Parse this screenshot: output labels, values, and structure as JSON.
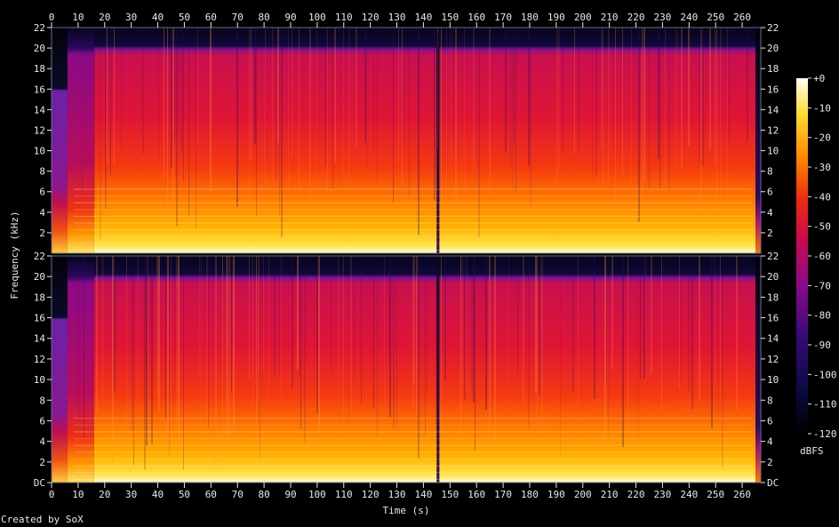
{
  "chart_data": {
    "type": "heatmap",
    "xlabel": "Time (s)",
    "ylabel": "Frequency (kHz)",
    "x_ticks": [
      0,
      10,
      20,
      30,
      40,
      50,
      60,
      70,
      80,
      90,
      100,
      110,
      120,
      130,
      140,
      150,
      160,
      170,
      180,
      190,
      200,
      210,
      220,
      230,
      240,
      250,
      260
    ],
    "xlim": [
      0,
      267
    ],
    "y_ticks_top": [
      "22",
      "20",
      "18",
      "16",
      "14",
      "12",
      "10",
      "8",
      "6",
      "4",
      "2"
    ],
    "y_ticks_bottom": [
      "22",
      "20",
      "18",
      "16",
      "14",
      "12",
      "10",
      "8",
      "6",
      "4",
      "2",
      "DC"
    ],
    "ylim_khz": [
      0,
      22
    ],
    "channels": 2,
    "colorbar": {
      "label": "dBFS",
      "ticks": [
        "+0",
        "-10",
        "-20",
        "-30",
        "-40",
        "-50",
        "-60",
        "-70",
        "-80",
        "-90",
        "-100",
        "-110",
        "-120"
      ],
      "range_db": [
        -120,
        0
      ]
    },
    "segments_s": [
      {
        "start": 0,
        "end": 6,
        "level": "low",
        "cutoff_khz": 16
      },
      {
        "start": 6,
        "end": 16,
        "level": "medium",
        "cutoff_khz": 20
      },
      {
        "start": 16,
        "end": 145,
        "level": "high",
        "cutoff_khz": 20
      },
      {
        "start": 145,
        "end": 146,
        "level": "gap",
        "cutoff_khz": 0
      },
      {
        "start": 146,
        "end": 265,
        "level": "high",
        "cutoff_khz": 20
      },
      {
        "start": 265,
        "end": 267,
        "level": "fade",
        "cutoff_khz": 5
      }
    ]
  },
  "footer": {
    "credit": "Created by SoX"
  }
}
